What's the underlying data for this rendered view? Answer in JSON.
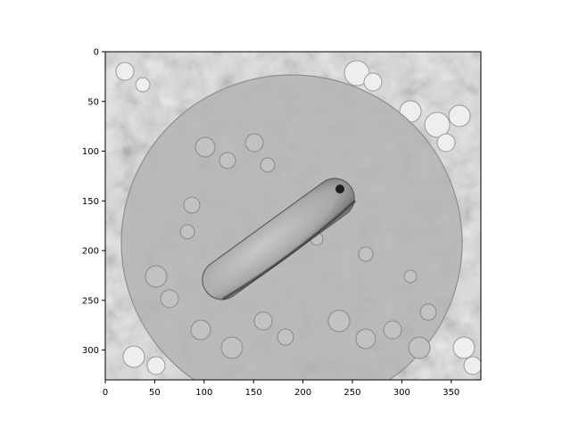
{
  "figure": {
    "background": "#ffffff",
    "image_description_icon": "microscopy-image",
    "colormap": "gray",
    "x_axis": {
      "min": 0,
      "max": 380,
      "ticks": [
        0,
        50,
        100,
        150,
        200,
        250,
        300,
        350
      ],
      "tick_labels": [
        "0",
        "50",
        "100",
        "150",
        "200",
        "250",
        "300",
        "350"
      ]
    },
    "y_axis": {
      "min": 0,
      "max": 330,
      "inverted": true,
      "ticks": [
        0,
        50,
        100,
        150,
        200,
        250,
        300
      ],
      "tick_labels": [
        "0",
        "50",
        "100",
        "150",
        "200",
        "250",
        "300"
      ]
    },
    "grid": false
  }
}
